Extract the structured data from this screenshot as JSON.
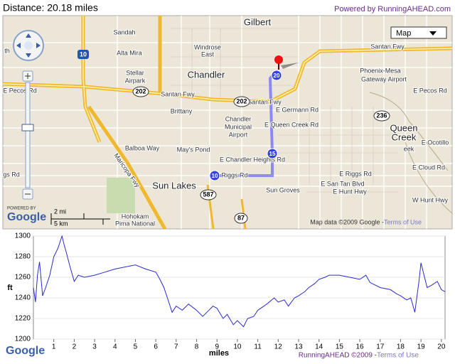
{
  "header": {
    "distance": "Distance: 20.18 miles",
    "powered_by": "Powered by RunningAHEAD.com"
  },
  "map": {
    "type_control": "Map",
    "labels": [
      "Gilbert",
      "Sandah",
      "Windrose",
      "East",
      "Alta Mira",
      "Stellar",
      "Airpark",
      "Chandler",
      "Santan Fwy",
      "Phoenix-Mesa",
      "Gateway Airport",
      "E Pecos Rd",
      "E Pecos Rd",
      "Santan Fwy",
      "Santan Fwy",
      "E Germann Rd",
      "Brittany",
      "Chandler",
      "Municipal",
      "Airport",
      "E Queen Creek Rd",
      "Queen",
      "Creek",
      "E Ocotillo",
      "Balboa Way",
      "May's Pond",
      "E Chandler Heights Rd",
      "E Cloud Rd",
      "Riggs Rd",
      "E Riggs Rd",
      "gs Rd",
      "E San Tan Blvd",
      "E Hunt Hwy",
      "W Hunt Hwy",
      "Sun Lakes",
      "Sun Groves",
      "Hohokam",
      "Pima National",
      "Maricopa Fwy",
      "th",
      "eek"
    ],
    "shields": [
      "10",
      "202",
      "202",
      "236",
      "587",
      "87"
    ],
    "markers": [
      "10",
      "15",
      "20"
    ],
    "scale": [
      "2 mi",
      "5 km"
    ],
    "powered": "POWERED BY",
    "google": "Google",
    "attribution": "Map data ©2009 Google - ",
    "terms": "Terms of Use"
  },
  "chart_data": {
    "type": "line",
    "y_label": "ft",
    "x_label": "miles",
    "x": [
      0,
      0.1,
      0.2,
      0.3,
      0.45,
      0.6,
      0.8,
      1.0,
      1.2,
      1.4,
      1.5,
      1.6,
      1.8,
      2.0,
      2.2,
      2.5,
      3.0,
      3.5,
      4.0,
      4.5,
      5.0,
      5.5,
      6.0,
      6.2,
      6.4,
      6.6,
      6.8,
      7.0,
      7.3,
      7.6,
      8.0,
      8.3,
      8.5,
      8.8,
      9.0,
      9.3,
      9.5,
      9.8,
      10.0,
      10.3,
      10.5,
      10.8,
      11.0,
      11.3,
      11.5,
      11.8,
      12.0,
      12.3,
      12.5,
      12.8,
      13.0,
      13.3,
      13.5,
      13.8,
      14.0,
      14.3,
      14.5,
      15.0,
      15.5,
      16.0,
      16.3,
      16.5,
      17.0,
      17.5,
      17.8,
      18.0,
      18.3,
      18.5,
      18.7,
      18.9,
      19.0,
      19.3,
      19.5,
      19.8,
      20.0,
      20.18
    ],
    "series": [
      {
        "color": "#2a2ad0",
        "values": [
          1250,
          1236,
          1262,
          1275,
          1242,
          1250,
          1262,
          1280,
          1288,
          1300,
          1292,
          1285,
          1270,
          1256,
          1262,
          1260,
          1262,
          1265,
          1268,
          1270,
          1272,
          1268,
          1265,
          1258,
          1250,
          1238,
          1226,
          1232,
          1228,
          1234,
          1228,
          1222,
          1226,
          1232,
          1230,
          1220,
          1224,
          1214,
          1218,
          1212,
          1220,
          1222,
          1228,
          1232,
          1235,
          1240,
          1236,
          1238,
          1232,
          1240,
          1242,
          1246,
          1250,
          1254,
          1258,
          1260,
          1262,
          1262,
          1260,
          1258,
          1262,
          1255,
          1250,
          1248,
          1244,
          1242,
          1238,
          1240,
          1226,
          1256,
          1274,
          1250,
          1252,
          1256,
          1248,
          1246
        ]
      }
    ],
    "xlim": [
      0,
      20.18
    ],
    "ylim": [
      1200,
      1300
    ],
    "xticks": [
      1,
      2,
      3,
      4,
      5,
      6,
      7,
      8,
      9,
      10,
      11,
      12,
      13,
      14,
      15,
      16,
      17,
      18,
      19,
      20
    ],
    "yticks": [
      1200,
      1220,
      1240,
      1260,
      1280,
      1300
    ],
    "grid": true
  },
  "footer": {
    "google": "Google",
    "credit": "RunningAHEAD ©2009 - ",
    "terms": "Terms of Use"
  }
}
